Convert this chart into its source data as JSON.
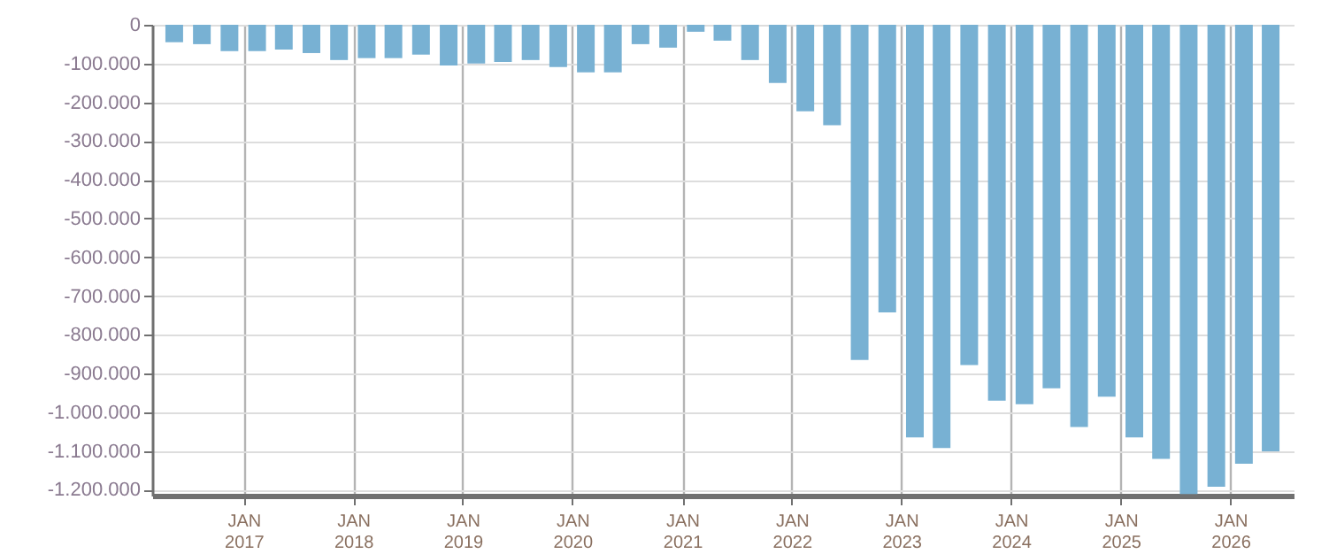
{
  "chart_data": {
    "type": "bar",
    "color": "#78b1d3",
    "grid": true,
    "x": [
      "2016-05-15",
      "2016-08-15",
      "2016-11-15",
      "2017-02-15",
      "2017-05-15",
      "2017-08-15",
      "2017-11-15",
      "2018-02-15",
      "2018-05-15",
      "2018-08-15",
      "2018-11-15",
      "2019-02-15",
      "2019-05-15",
      "2019-08-15",
      "2019-11-15",
      "2020-02-15",
      "2020-05-15",
      "2020-08-15",
      "2020-11-15",
      "2021-02-15",
      "2021-05-15",
      "2021-08-15",
      "2021-11-15",
      "2022-02-15",
      "2022-05-15",
      "2022-08-15",
      "2022-11-15",
      "2023-02-15",
      "2023-05-15",
      "2023-08-15",
      "2023-11-15",
      "2024-02-15",
      "2024-05-15",
      "2024-08-15",
      "2024-11-15",
      "2025-02-15",
      "2025-05-15",
      "2025-08-15",
      "2025-11-15",
      "2026-02-15",
      "2026-05-15"
    ],
    "values": [
      -45000,
      -50000,
      -68000,
      -68000,
      -64000,
      -73000,
      -91000,
      -86000,
      -86000,
      -77000,
      -105000,
      -100000,
      -96000,
      -91000,
      -109000,
      -123000,
      -123000,
      -50000,
      -59000,
      -18000,
      -41000,
      -91000,
      -150000,
      -223000,
      -259000,
      -865000,
      -742000,
      -1065000,
      -1092000,
      -878000,
      -970000,
      -979000,
      -938000,
      -1038000,
      -960000,
      -1065000,
      -1120000,
      -1211000,
      -1192000,
      -1133000,
      -1101000
    ],
    "xlim": [
      "2016-04-01",
      "2026-07-01"
    ],
    "xticks": [
      {
        "value": "2017-01-01",
        "label": "JAN 2017"
      },
      {
        "value": "2018-01-01",
        "label": "JAN 2018"
      },
      {
        "value": "2019-01-01",
        "label": "JAN 2019"
      },
      {
        "value": "2020-01-01",
        "label": "JAN 2020"
      },
      {
        "value": "2021-01-01",
        "label": "JAN 2021"
      },
      {
        "value": "2022-01-01",
        "label": "JAN 2022"
      },
      {
        "value": "2023-01-01",
        "label": "JAN 2023"
      },
      {
        "value": "2024-01-01",
        "label": "JAN 2024"
      },
      {
        "value": "2025-01-01",
        "label": "JAN 2025"
      },
      {
        "value": "2026-01-01",
        "label": "JAN 2026"
      }
    ],
    "ylim": [
      -1215000,
      0
    ],
    "yticks": [
      {
        "value": 0,
        "label": "0"
      },
      {
        "value": -100000,
        "label": "-100.000"
      },
      {
        "value": -200000,
        "label": "-200.000"
      },
      {
        "value": -300000,
        "label": "-300.000"
      },
      {
        "value": -400000,
        "label": "-400.000"
      },
      {
        "value": -500000,
        "label": "-500.000"
      },
      {
        "value": -600000,
        "label": "-600.000"
      },
      {
        "value": -700000,
        "label": "-700.000"
      },
      {
        "value": -800000,
        "label": "-800.000"
      },
      {
        "value": -900000,
        "label": "-900.000"
      },
      {
        "value": -1000000,
        "label": "-1.000.000"
      },
      {
        "value": -1100000,
        "label": "-1.100.000"
      },
      {
        "value": -1200000,
        "label": "-1.200.000"
      }
    ]
  }
}
